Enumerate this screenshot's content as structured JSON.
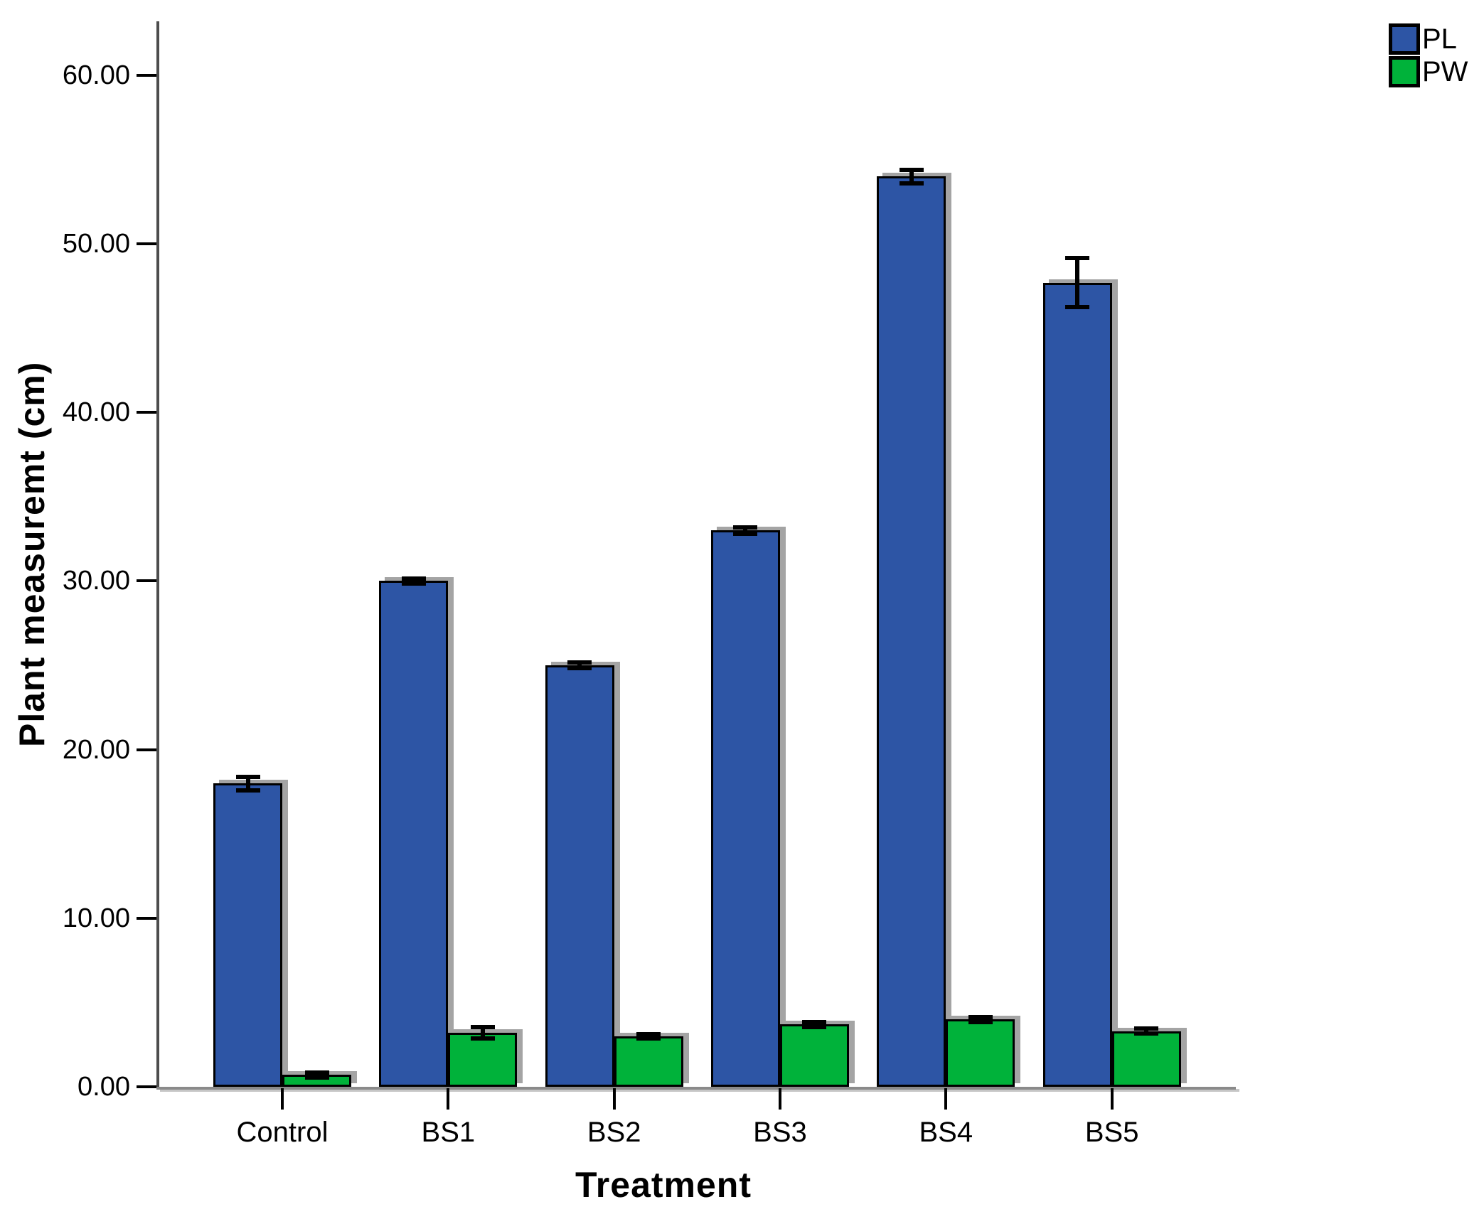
{
  "chart_data": {
    "type": "bar",
    "title": "",
    "xlabel": "Treatment",
    "ylabel": "Plant measuremt (cm)",
    "categories": [
      "Control",
      "BS1",
      "BS2",
      "BS3",
      "BS4",
      "BS5"
    ],
    "series": [
      {
        "name": "PL",
        "color": "#2D55A5",
        "values": [
          18.0,
          30.0,
          25.0,
          33.0,
          54.0,
          47.7
        ],
        "errors": [
          0.4,
          0.15,
          0.15,
          0.2,
          0.4,
          1.45
        ]
      },
      {
        "name": "PW",
        "color": "#00B23A",
        "values": [
          0.7,
          3.2,
          3.0,
          3.7,
          4.0,
          3.3
        ],
        "errors": [
          0.15,
          0.35,
          0.12,
          0.15,
          0.15,
          0.15
        ]
      }
    ],
    "ylim": [
      0,
      63.2
    ],
    "yticks": [
      0,
      10,
      20,
      30,
      40,
      50,
      60
    ],
    "ytick_labels": [
      "0.00",
      "10.00",
      "20.00",
      "30.00",
      "40.00",
      "50.00",
      "60.00"
    ],
    "legend_position": "top-right",
    "grid": false,
    "error_bars": true
  }
}
